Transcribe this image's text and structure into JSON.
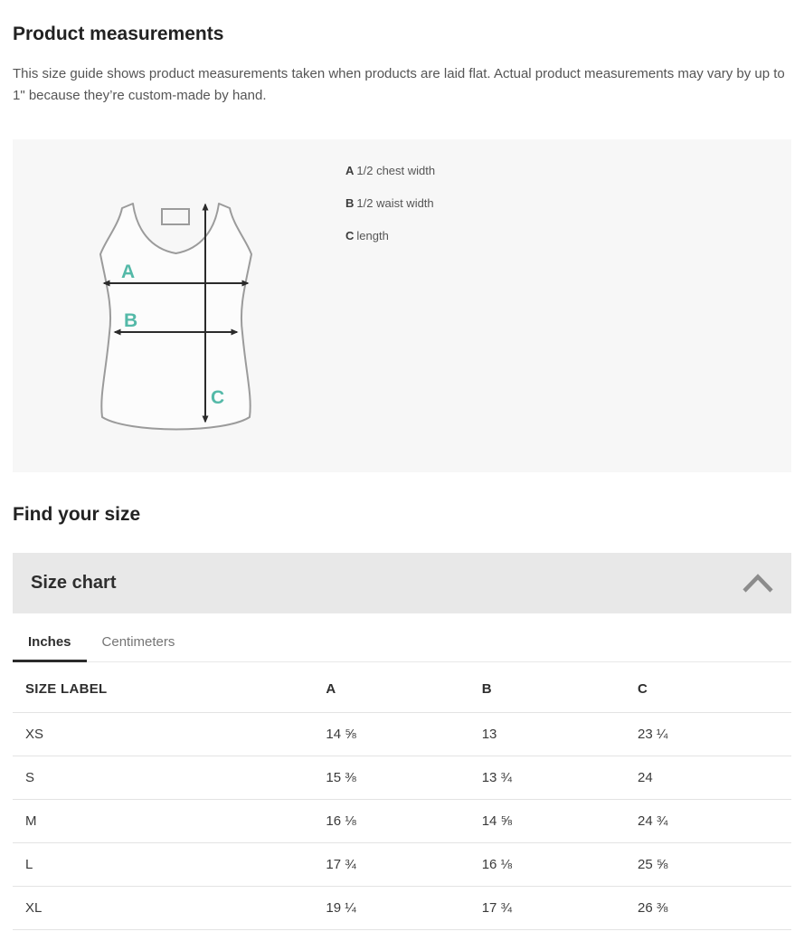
{
  "page": {
    "title": "Product measurements",
    "description": "This size guide shows product measurements taken when products are laid flat. Actual product measurements may vary by up to 1\" because they’re custom-made by hand."
  },
  "diagram": {
    "product": "tank-top-outline",
    "accent_color": "#54b9a8",
    "arrow_color": "#2b2b2b",
    "outline_color": "#9b9b9b",
    "legend": [
      {
        "key": "A",
        "label": "1/2 chest width"
      },
      {
        "key": "B",
        "label": "1/2 waist width"
      },
      {
        "key": "C",
        "label": "length"
      }
    ]
  },
  "find_size": {
    "heading": "Find your size"
  },
  "size_chart": {
    "title": "Size chart",
    "collapse_icon": "chevron-up-icon",
    "tabs": [
      {
        "label": "Inches",
        "active": true
      },
      {
        "label": "Centimeters",
        "active": false
      }
    ],
    "table": {
      "columns": [
        "SIZE LABEL",
        "A",
        "B",
        "C"
      ],
      "rows": [
        [
          "XS",
          "14 ⅝",
          "13",
          "23 ¼"
        ],
        [
          "S",
          "15 ⅜",
          "13 ¾",
          "24"
        ],
        [
          "M",
          "16 ⅛",
          "14 ⅝",
          "24 ¾"
        ],
        [
          "L",
          "17 ¾",
          "16 ⅛",
          "25 ⅝"
        ],
        [
          "XL",
          "19 ¼",
          "17 ¾",
          "26 ⅜"
        ]
      ]
    }
  }
}
